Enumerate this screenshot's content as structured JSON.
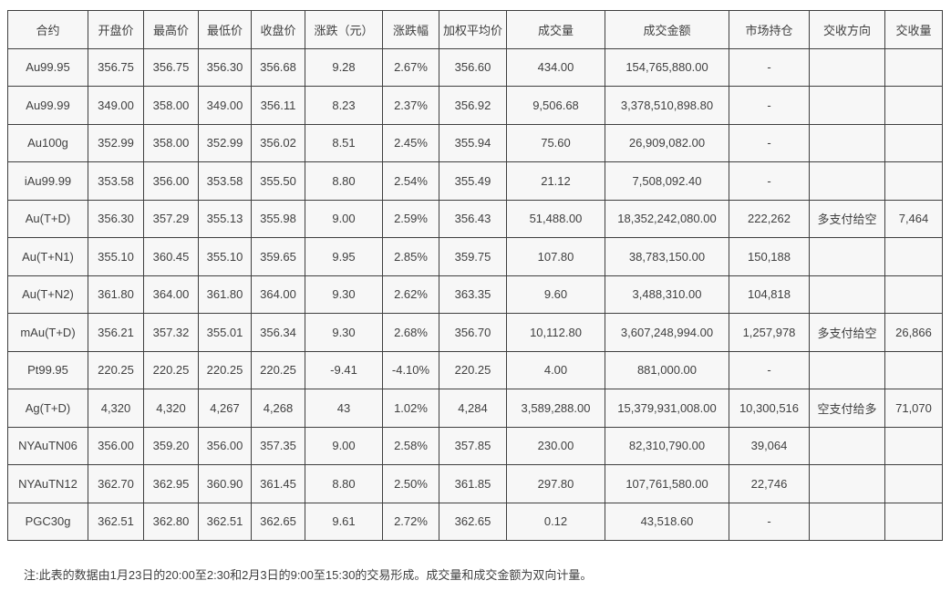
{
  "colors": {
    "page_background": "#ffffff",
    "cell_background": "#f7f7f7",
    "border": "#3f3f3f",
    "text": "#404040"
  },
  "table": {
    "columns": [
      {
        "label": "合约",
        "width": 88
      },
      {
        "label": "开盘价",
        "width": 61
      },
      {
        "label": "最高价",
        "width": 60
      },
      {
        "label": "最低价",
        "width": 58
      },
      {
        "label": "收盘价",
        "width": 59
      },
      {
        "label": "涨跌（元）",
        "width": 85
      },
      {
        "label": "涨跌幅",
        "width": 62
      },
      {
        "label": "加权平均价",
        "width": 74
      },
      {
        "label": "成交量",
        "width": 108
      },
      {
        "label": "成交金额",
        "width": 136
      },
      {
        "label": "市场持仓",
        "width": 88
      },
      {
        "label": "交收方向",
        "width": 83
      },
      {
        "label": "交收量",
        "width": 63
      }
    ],
    "rows": [
      [
        "Au99.95",
        "356.75",
        "356.75",
        "356.30",
        "356.68",
        "9.28",
        "2.67%",
        "356.60",
        "434.00",
        "154,765,880.00",
        "-",
        "",
        ""
      ],
      [
        "Au99.99",
        "349.00",
        "358.00",
        "349.00",
        "356.11",
        "8.23",
        "2.37%",
        "356.92",
        "9,506.68",
        "3,378,510,898.80",
        "-",
        "",
        ""
      ],
      [
        "Au100g",
        "352.99",
        "358.00",
        "352.99",
        "356.02",
        "8.51",
        "2.45%",
        "355.94",
        "75.60",
        "26,909,082.00",
        "-",
        "",
        ""
      ],
      [
        "iAu99.99",
        "353.58",
        "356.00",
        "353.58",
        "355.50",
        "8.80",
        "2.54%",
        "355.49",
        "21.12",
        "7,508,092.40",
        "-",
        "",
        ""
      ],
      [
        "Au(T+D)",
        "356.30",
        "357.29",
        "355.13",
        "355.98",
        "9.00",
        "2.59%",
        "356.43",
        "51,488.00",
        "18,352,242,080.00",
        "222,262",
        "多支付给空",
        "7,464"
      ],
      [
        "Au(T+N1)",
        "355.10",
        "360.45",
        "355.10",
        "359.65",
        "9.95",
        "2.85%",
        "359.75",
        "107.80",
        "38,783,150.00",
        "150,188",
        "",
        ""
      ],
      [
        "Au(T+N2)",
        "361.80",
        "364.00",
        "361.80",
        "364.00",
        "9.30",
        "2.62%",
        "363.35",
        "9.60",
        "3,488,310.00",
        "104,818",
        "",
        ""
      ],
      [
        "mAu(T+D)",
        "356.21",
        "357.32",
        "355.01",
        "356.34",
        "9.30",
        "2.68%",
        "356.70",
        "10,112.80",
        "3,607,248,994.00",
        "1,257,978",
        "多支付给空",
        "26,866"
      ],
      [
        "Pt99.95",
        "220.25",
        "220.25",
        "220.25",
        "220.25",
        "-9.41",
        "-4.10%",
        "220.25",
        "4.00",
        "881,000.00",
        "-",
        "",
        ""
      ],
      [
        "Ag(T+D)",
        "4,320",
        "4,320",
        "4,267",
        "4,268",
        "43",
        "1.02%",
        "4,284",
        "3,589,288.00",
        "15,379,931,008.00",
        "10,300,516",
        "空支付给多",
        "71,070"
      ],
      [
        "NYAuTN06",
        "356.00",
        "359.20",
        "356.00",
        "357.35",
        "9.00",
        "2.58%",
        "357.85",
        "230.00",
        "82,310,790.00",
        "39,064",
        "",
        ""
      ],
      [
        "NYAuTN12",
        "362.70",
        "362.95",
        "360.90",
        "361.45",
        "8.80",
        "2.50%",
        "361.85",
        "297.80",
        "107,761,580.00",
        "22,746",
        "",
        ""
      ],
      [
        "PGC30g",
        "362.51",
        "362.80",
        "362.51",
        "362.65",
        "9.61",
        "2.72%",
        "362.65",
        "0.12",
        "43,518.60",
        "-",
        "",
        ""
      ]
    ]
  },
  "note": "注:此表的数据由1月23日的20:00至2:30和2月3日的9:00至15:30的交易形成。成交量和成交金额为双向计量。"
}
